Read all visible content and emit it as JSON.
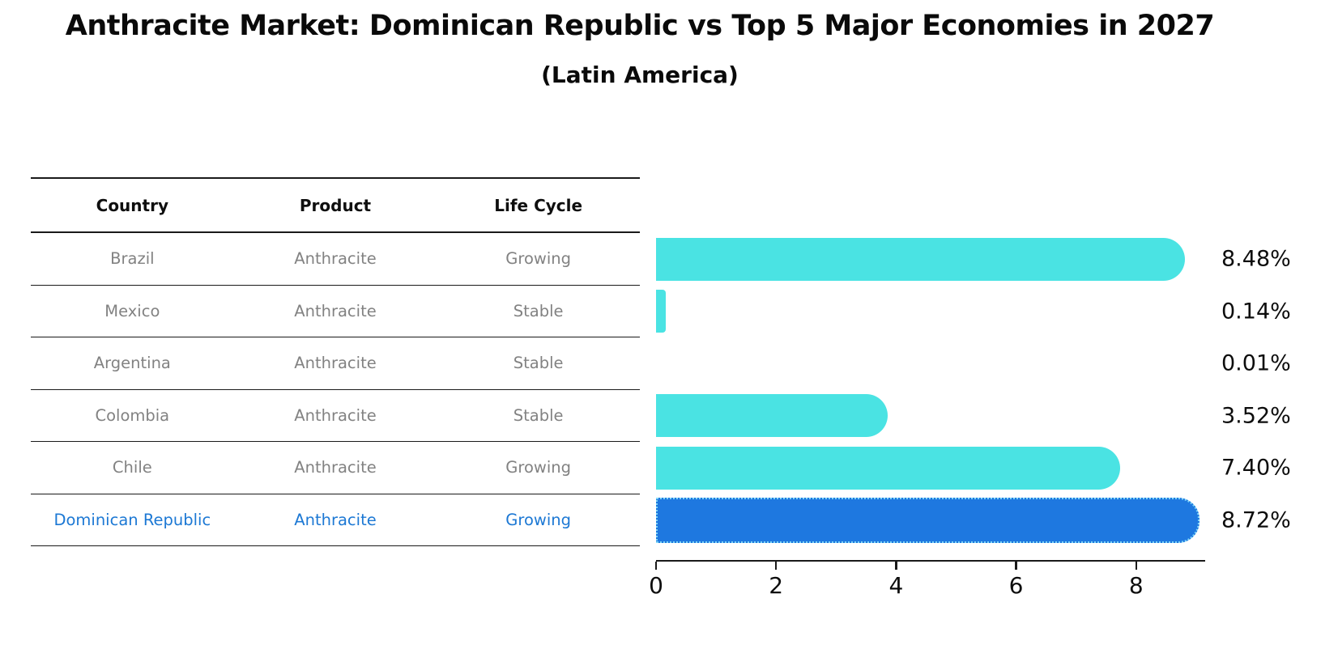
{
  "title": "Anthracite Market: Dominican Republic vs Top 5 Major Economies in 2027",
  "subtitle": "(Latin America)",
  "table": {
    "headers": [
      "Country",
      "Product",
      "Life Cycle"
    ],
    "rows": [
      {
        "country": "Brazil",
        "product": "Anthracite",
        "life_cycle": "Growing"
      },
      {
        "country": "Mexico",
        "product": "Anthracite",
        "life_cycle": "Stable"
      },
      {
        "country": "Argentina",
        "product": "Anthracite",
        "life_cycle": "Stable"
      },
      {
        "country": "Colombia",
        "product": "Anthracite",
        "life_cycle": "Stable"
      },
      {
        "country": "Chile",
        "product": "Anthracite",
        "life_cycle": "Growing"
      },
      {
        "country": "Dominican Republic",
        "product": "Anthracite",
        "life_cycle": "Growing"
      }
    ],
    "highlight_row_index": 5
  },
  "chart_data": {
    "type": "bar",
    "orientation": "horizontal",
    "title": "Anthracite Market: Dominican Republic vs Top 5 Major Economies in 2027",
    "subtitle": "(Latin America)",
    "categories": [
      "Brazil",
      "Mexico",
      "Argentina",
      "Colombia",
      "Chile",
      "Dominican Republic"
    ],
    "values": [
      8.48,
      0.14,
      0.01,
      3.52,
      7.4,
      8.72
    ],
    "value_labels": [
      "8.48%",
      "0.14%",
      "0.01%",
      "3.52%",
      "7.40%",
      "8.72%"
    ],
    "x_ticks": [
      0,
      2,
      4,
      6,
      8
    ],
    "x_tick_labels": [
      "0",
      "2",
      "4",
      "6",
      "8"
    ],
    "xlim": [
      0,
      9.15
    ],
    "grid": false,
    "legend": "none",
    "highlight_index": 5,
    "bar_color": "#4AE3E3",
    "highlight_bar_color": "#1E78E0",
    "highlight_bar_edge_color": "#7FD6F7",
    "highlight_bar_edge_style": "dotted",
    "value_label_color": "#0d0d0d",
    "axis_color": "#1a1a1a"
  },
  "colors": {
    "table_header_text": "#0f0f0f",
    "table_row_text": "#828282",
    "table_highlight_text": "#1c78d4",
    "table_line": "#1a1a1a",
    "background": "#ffffff"
  }
}
